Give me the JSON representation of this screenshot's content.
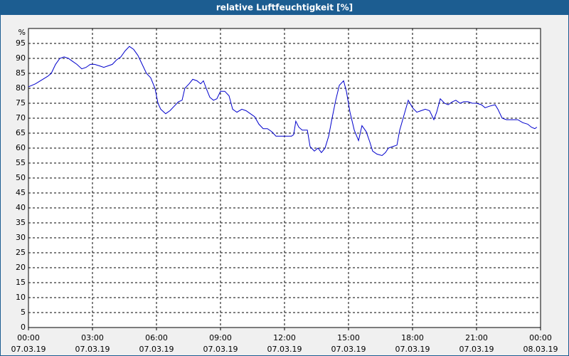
{
  "chart_data": {
    "type": "line",
    "title": "relative Luftfeuchtigkeit [%]",
    "ylabel": "%",
    "color": "#0000cc",
    "x": [
      0,
      0.33,
      0.67,
      0.9,
      1.07,
      1.27,
      1.47,
      1.67,
      1.87,
      2.07,
      2.27,
      2.5,
      2.7,
      2.9,
      3.1,
      3.33,
      3.53,
      3.73,
      3.93,
      4.13,
      4.33,
      4.53,
      4.73,
      4.93,
      5.13,
      5.33,
      5.53,
      5.73,
      5.93,
      6.07,
      6.2,
      6.43,
      6.63,
      6.83,
      7.03,
      7.2,
      7.33,
      7.53,
      7.7,
      7.9,
      8.07,
      8.2,
      8.33,
      8.5,
      8.67,
      8.83,
      9.0,
      9.2,
      9.4,
      9.57,
      9.77,
      10.0,
      10.2,
      10.4,
      10.6,
      10.8,
      11.0,
      11.2,
      11.4,
      11.6,
      11.8,
      12.0,
      12.33,
      12.43,
      12.53,
      12.67,
      12.83,
      13.07,
      13.2,
      13.4,
      13.57,
      13.73,
      13.9,
      14.07,
      14.23,
      14.4,
      14.57,
      14.77,
      14.9,
      15.07,
      15.27,
      15.47,
      15.63,
      15.83,
      16.0,
      16.13,
      16.33,
      16.57,
      16.73,
      16.87,
      17.07,
      17.27,
      17.4,
      17.6,
      17.8,
      18.0,
      18.2,
      18.4,
      18.6,
      18.8,
      19.0,
      19.13,
      19.3,
      19.5,
      19.67,
      19.87,
      20.03,
      20.23,
      20.4,
      20.6,
      20.8,
      21.0,
      21.23,
      21.4,
      21.6,
      21.87,
      22.0,
      22.2,
      22.4,
      22.67,
      22.93,
      23.17,
      23.4,
      23.57,
      23.73,
      23.83
    ],
    "values": [
      80.5,
      81.5,
      83,
      84,
      85,
      88,
      90,
      90.5,
      90,
      89,
      88,
      86.5,
      87,
      88,
      88,
      87.5,
      87,
      87.5,
      88,
      89.5,
      90.5,
      92.5,
      94,
      93,
      91,
      88,
      85,
      83.5,
      80,
      75,
      73,
      71.5,
      72.5,
      74,
      75.5,
      76,
      80,
      81.5,
      83,
      82.5,
      81.5,
      82.5,
      80,
      77,
      76,
      76.5,
      79,
      79,
      77.5,
      73,
      72,
      73,
      72.5,
      71.5,
      70.5,
      68,
      66.5,
      66.5,
      65.5,
      64,
      64,
      64,
      64,
      64.5,
      69,
      67,
      66,
      66,
      60.5,
      59,
      60,
      58.5,
      60,
      64,
      70,
      76,
      81,
      82.5,
      79,
      72,
      66,
      62.5,
      67.5,
      65.5,
      62,
      59,
      58,
      57.5,
      58.5,
      60,
      60.5,
      61,
      66,
      71,
      76,
      73.5,
      72,
      72.5,
      73,
      72.5,
      69.5,
      72,
      76.5,
      75,
      74.5,
      75.5,
      76,
      75,
      75.5,
      75.5,
      75,
      75,
      74.5,
      73.5,
      74,
      74.5,
      73,
      70,
      69.5,
      69.5,
      69.5,
      68.5,
      68,
      67,
      66.5,
      67
    ],
    "xlim": [
      0,
      24
    ],
    "ylim": [
      0,
      100
    ],
    "xticks": [
      {
        "value": 0,
        "label": "00:00",
        "date": "07.03.19"
      },
      {
        "value": 3,
        "label": "03:00",
        "date": "07.03.19"
      },
      {
        "value": 6,
        "label": "06:00",
        "date": "07.03.19"
      },
      {
        "value": 9,
        "label": "09:00",
        "date": "07.03.19"
      },
      {
        "value": 12,
        "label": "12:00",
        "date": "07.03.19"
      },
      {
        "value": 15,
        "label": "15:00",
        "date": "07.03.19"
      },
      {
        "value": 18,
        "label": "18:00",
        "date": "07.03.19"
      },
      {
        "value": 21,
        "label": "21:00",
        "date": "07.03.19"
      },
      {
        "value": 24,
        "label": "00:00",
        "date": "08.03.19"
      }
    ],
    "yticks": [
      0,
      5,
      10,
      15,
      20,
      25,
      30,
      35,
      40,
      45,
      50,
      55,
      60,
      65,
      70,
      75,
      80,
      85,
      90,
      95
    ],
    "grid": true
  }
}
